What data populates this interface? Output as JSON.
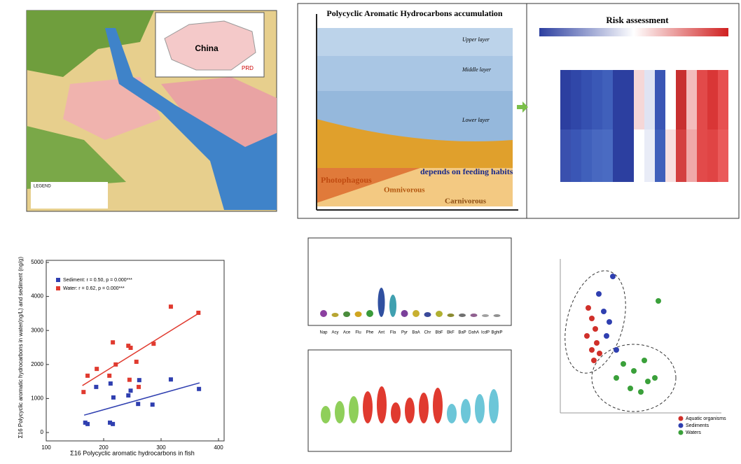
{
  "map": {
    "country": "China",
    "region": "PRD",
    "legend_title": "LEGEND"
  },
  "diagram": {
    "title": "Polycyclic Aromatic Hydrocarbons accumulation",
    "layers": [
      "Upper layer",
      "Middle layer",
      "Lower layer"
    ],
    "habits": [
      "Photophagous",
      "Omnivorous",
      "Carnivorous"
    ],
    "note": "depends on feeding habits"
  },
  "heatmap": {
    "title": "Risk assessment"
  },
  "violin": {
    "categories": [
      "Nap",
      "Acy",
      "Ace",
      "Flu",
      "Phe",
      "Ant",
      "Fla",
      "Pyr",
      "BaA",
      "Chr",
      "BbF",
      "BkF",
      "BaP",
      "DahA",
      "IcdP",
      "BghiP"
    ]
  },
  "pca": {
    "legend": [
      "Aquatic organisms",
      "Sediments",
      "Waters"
    ]
  },
  "chart_data": [
    {
      "type": "scatter",
      "xlabel": "Σ16 Polycyclic aromatic hydrocarbons in fish",
      "ylabel": "Σ16 Polycyclic aromatic hydrocarbons in water(ng/L) and sediment (ng/g)",
      "xlim": [
        100,
        400
      ],
      "ylim": [
        0,
        5000
      ],
      "xticks": [
        100,
        200,
        300,
        400
      ],
      "yticks": [
        0,
        1000,
        2000,
        3000,
        4000,
        5000
      ],
      "series": [
        {
          "name": "Sediment: r = 0.50, p = 0.000***",
          "color": "#2f3fb0",
          "x": [
            168,
            172,
            211,
            216,
            187,
            217,
            243,
            247,
            260,
            262,
            285,
            317,
            366,
            212
          ],
          "values": [
            290,
            250,
            290,
            250,
            1340,
            1030,
            1090,
            1230,
            840,
            1540,
            820,
            1560,
            1280,
            1440
          ],
          "fit_x": [
            166,
            367
          ],
          "fit_y": [
            510,
            1460
          ]
        },
        {
          "name": "Water: r = 0.62, p = 0.000***",
          "color": "#e03a2f",
          "x": [
            165,
            172,
            188,
            210,
            216,
            221,
            243,
            247,
            257,
            261,
            287,
            317,
            365,
            245
          ],
          "values": [
            1190,
            1670,
            1870,
            1670,
            2650,
            2000,
            2550,
            2490,
            2080,
            1340,
            2610,
            3700,
            3520,
            1550
          ],
          "fit_x": [
            163,
            367
          ],
          "fit_y": [
            1380,
            3520
          ]
        }
      ]
    }
  ]
}
